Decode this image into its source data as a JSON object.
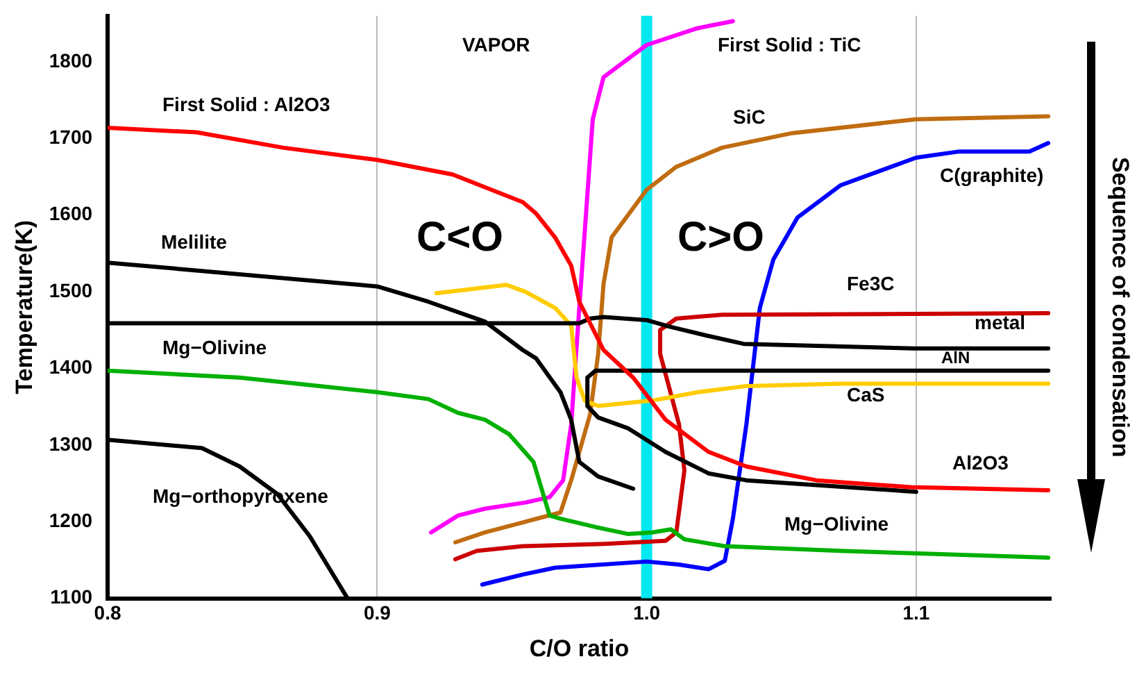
{
  "chart_data": {
    "type": "line",
    "xlabel": "C/O ratio",
    "ylabel": "Temperature(K)",
    "xlim": [
      0.8,
      1.15
    ],
    "xticks": [
      0.8,
      0.9,
      {
        "value": 1,
        "label": "1.0"
      },
      1.1
    ],
    "ylim": [
      1100,
      1860
    ],
    "yticks": [
      1100,
      1200,
      1300,
      1400,
      1500,
      1600,
      1700,
      1800
    ],
    "grid": "x",
    "legend": false,
    "marker": "none",
    "line_style": "solid",
    "ref_lines": [
      {
        "axis": "x",
        "value": 1,
        "color": "#00e8f0"
      }
    ],
    "series": [
      {
        "color": "#ff0000",
        "x": [
          0.8,
          0.833,
          0.865,
          0.9,
          0.928,
          0.954,
          0.959,
          0.966,
          0.972,
          0.975,
          0.984,
          0.995,
          1.007,
          1.023,
          1.037,
          1.063,
          1.098,
          1.149
        ],
        "values": [
          1714,
          1708,
          1688,
          1672,
          1653,
          1617,
          1602,
          1571,
          1534,
          1487,
          1424,
          1388,
          1333,
          1291,
          1272,
          1254,
          1245,
          1241
        ]
      },
      {
        "color": "#000000",
        "x": [
          0.8,
          0.9,
          0.919,
          0.94,
          0.954,
          0.959,
          0.968,
          0.972,
          0.975,
          0.982,
          0.995
        ],
        "values": [
          1538,
          1507,
          1487,
          1461,
          1424,
          1413,
          1369,
          1333,
          1278,
          1259,
          1243
        ]
      },
      {
        "color": "#00b000",
        "x": [
          0.8,
          0.849,
          0.9,
          0.919,
          0.93,
          0.94,
          0.949,
          0.954,
          0.958,
          0.964,
          0.968,
          0.981,
          0.993,
          1.002,
          1.009,
          1.014,
          1.029,
          1.072,
          1.149
        ],
        "values": [
          1397,
          1388,
          1369,
          1360,
          1342,
          1333,
          1314,
          1294,
          1278,
          1208,
          1204,
          1193,
          1184,
          1186,
          1190,
          1177,
          1168,
          1162,
          1153
        ]
      },
      {
        "color": "#000000",
        "x": [
          0.8,
          0.835,
          0.849,
          0.863,
          0.875,
          0.889
        ],
        "values": [
          1307,
          1296,
          1272,
          1236,
          1181,
          1100
        ]
      },
      {
        "color": "#000000",
        "x": [
          0.8,
          0.975,
          0.979,
          0.984,
          1.0,
          1.008,
          1.022,
          1.036,
          1.099,
          1.149
        ],
        "values": [
          1459,
          1459,
          1465,
          1467,
          1463,
          1455,
          1443,
          1432,
          1426,
          1426
        ]
      },
      {
        "color": "#000000",
        "x": [
          1.149,
          0.981,
          0.978,
          0.978,
          0.982,
          0.993,
          1.007,
          1.023,
          1.037,
          1.1
        ],
        "values": [
          1397,
          1397,
          1388,
          1351,
          1336,
          1322,
          1291,
          1263,
          1254,
          1239
        ]
      },
      {
        "color": "#ffcc00",
        "x": [
          0.922,
          0.948,
          0.955,
          0.966,
          0.972,
          0.974,
          0.977,
          0.982,
          1.002,
          1.019,
          1.037,
          1.072,
          1.149
        ],
        "values": [
          1498,
          1509,
          1500,
          1479,
          1456,
          1388,
          1358,
          1351,
          1358,
          1369,
          1377,
          1380,
          1380
        ]
      },
      {
        "color": "#ff00ff",
        "x": [
          0.92,
          0.93,
          0.94,
          0.955,
          0.964,
          0.969,
          0.972,
          0.975,
          0.98,
          0.984,
          1.0,
          1.019,
          1.032
        ],
        "values": [
          1186,
          1208,
          1217,
          1225,
          1232,
          1254,
          1327,
          1479,
          1725,
          1780,
          1822,
          1844,
          1853
        ]
      },
      {
        "color": "#c06c10",
        "x": [
          0.929,
          0.94,
          0.954,
          0.968,
          0.972,
          0.979,
          0.982,
          0.984,
          0.987,
          1.0,
          1.011,
          1.028,
          1.054,
          1.1,
          1.149
        ],
        "values": [
          1173,
          1186,
          1199,
          1212,
          1254,
          1340,
          1419,
          1510,
          1571,
          1633,
          1663,
          1688,
          1707,
          1725,
          1729
        ]
      },
      {
        "color": "#cc0000",
        "x": [
          0.929,
          0.937,
          0.954,
          0.984,
          1.007,
          1.011,
          1.014,
          1.012,
          1.005,
          1.005,
          1.011,
          1.028,
          1.149
        ],
        "values": [
          1151,
          1162,
          1168,
          1171,
          1175,
          1186,
          1267,
          1327,
          1419,
          1450,
          1465,
          1470,
          1472
        ]
      },
      {
        "color": "#0000ff",
        "x": [
          0.939,
          0.954,
          0.966,
          1.0,
          1.012,
          1.023,
          1.029,
          1.032,
          1.037,
          1.042,
          1.047,
          1.056,
          1.072,
          1.1,
          1.116,
          1.142,
          1.149
        ],
        "values": [
          1118,
          1131,
          1140,
          1148,
          1144,
          1138,
          1149,
          1204,
          1327,
          1479,
          1542,
          1597,
          1639,
          1675,
          1683,
          1683,
          1694
        ]
      }
    ],
    "annotations": [
      "First Solid : Al2O3",
      "Melilite",
      "Mg−Olivine",
      "Mg−orthopyroxene",
      "VAPOR",
      "C<O",
      "C>O",
      "First Solid : TiC",
      "SiC",
      "C(graphite)",
      "Fe3C",
      "metal",
      "AlN",
      "CaS",
      "Al2O3",
      "Mg−Olivine",
      "Sequence of condensation"
    ]
  }
}
